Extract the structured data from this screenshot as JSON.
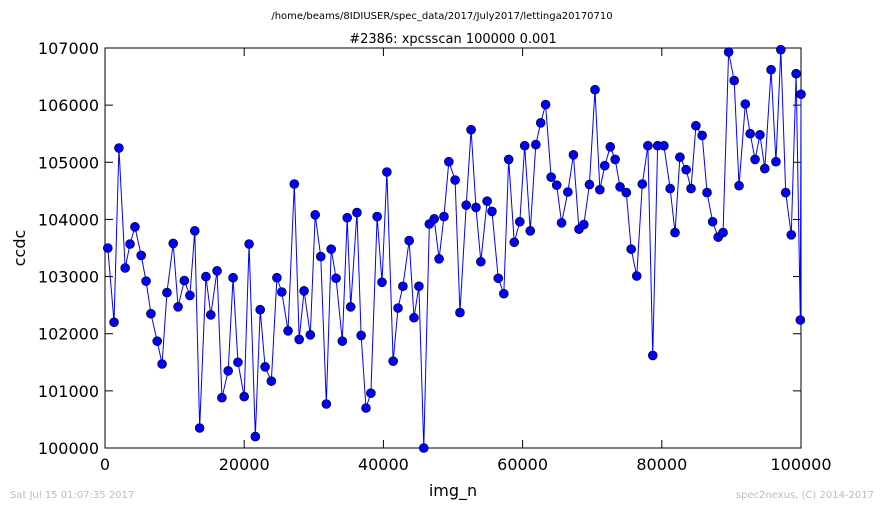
{
  "chart_data": {
    "type": "line",
    "suptitle": "/home/beams/8IDIUSER/spec_data/2017/July2017/lettinga20170710",
    "title": "#2386: xpcsscan 100000 0.001",
    "xlabel": "img_n",
    "ylabel": "ccdc",
    "footer_left": "Sat Jul 15 01:07:35 2017",
    "footer_right": "spec2nexus, (C) 2014-2017",
    "color": "#0000ff",
    "xlim": [
      0,
      100000
    ],
    "xticks": [
      0,
      20000,
      40000,
      60000,
      80000,
      100000
    ],
    "ylim": [
      100000,
      107000
    ],
    "yticks": [
      100000,
      101000,
      102000,
      103000,
      104000,
      105000,
      106000,
      107000
    ],
    "x": [
      400,
      1300,
      2000,
      2900,
      3600,
      4300,
      5200,
      5900,
      6600,
      7500,
      8200,
      8900,
      9800,
      10500,
      11400,
      12200,
      12900,
      13600,
      14500,
      15200,
      16100,
      16800,
      17700,
      18400,
      19100,
      20000,
      20700,
      21600,
      22300,
      23000,
      23900,
      24700,
      25400,
      26300,
      27200,
      27900,
      28600,
      29500,
      30200,
      31000,
      31800,
      32500,
      33200,
      34100,
      34800,
      35300,
      36200,
      36800,
      37500,
      38200,
      39100,
      39800,
      40500,
      41400,
      42100,
      42800,
      43700,
      44400,
      45100,
      45800,
      46600,
      47300,
      48000,
      48700,
      49400,
      50300,
      51000,
      51900,
      52600,
      53300,
      54000,
      54900,
      55600,
      56500,
      57300,
      58000,
      58800,
      59600,
      60300,
      61100,
      61900,
      62600,
      63300,
      64100,
      64900,
      65600,
      66500,
      67300,
      68100,
      68800,
      69600,
      70400,
      71100,
      71800,
      72600,
      73300,
      74000,
      74900,
      75600,
      76400,
      77200,
      78000,
      78700,
      79400,
      80300,
      81200,
      81900,
      82600,
      83500,
      84200,
      84900,
      85800,
      86500,
      87300,
      88100,
      88800,
      89600,
      90400,
      91100,
      92000,
      92700,
      93400,
      94100,
      94800,
      95700,
      96400,
      97100,
      97800,
      98600,
      99300,
      99900,
      100000
    ],
    "values": [
      103500,
      102200,
      105250,
      103150,
      103570,
      103870,
      103370,
      102920,
      102350,
      101870,
      101470,
      102720,
      103580,
      102470,
      102930,
      102670,
      103800,
      100350,
      103000,
      102330,
      103100,
      100880,
      101350,
      102980,
      101500,
      100900,
      103570,
      100200,
      102420,
      101420,
      101170,
      102980,
      102730,
      102050,
      104620,
      101900,
      102750,
      101980,
      104080,
      103350,
      100770,
      103480,
      102970,
      101870,
      104030,
      102470,
      104120,
      101970,
      100700,
      100960,
      104050,
      102900,
      104830,
      101520,
      102450,
      102830,
      103630,
      102280,
      102830,
      100000,
      103920,
      104010,
      103310,
      104050,
      105010,
      104690,
      102370,
      104250,
      105570,
      104210,
      103260,
      104320,
      104140,
      102970,
      102700,
      105050,
      103600,
      103960,
      105290,
      103800,
      105310,
      105690,
      106010,
      104740,
      104600,
      103940,
      104480,
      105130,
      103830,
      103910,
      104610,
      106270,
      104520,
      104940,
      105270,
      105050,
      104570,
      104470,
      103480,
      103010,
      104620,
      105290,
      101620,
      105290,
      105290,
      104540,
      103770,
      105090,
      104870,
      104540,
      105640,
      105470,
      104470,
      103960,
      103690,
      103770,
      106930,
      106430,
      104590,
      106020,
      105500,
      105050,
      105480,
      104890,
      106620,
      105010,
      106970,
      104470,
      103730,
      106550,
      102240,
      106190
    ]
  }
}
